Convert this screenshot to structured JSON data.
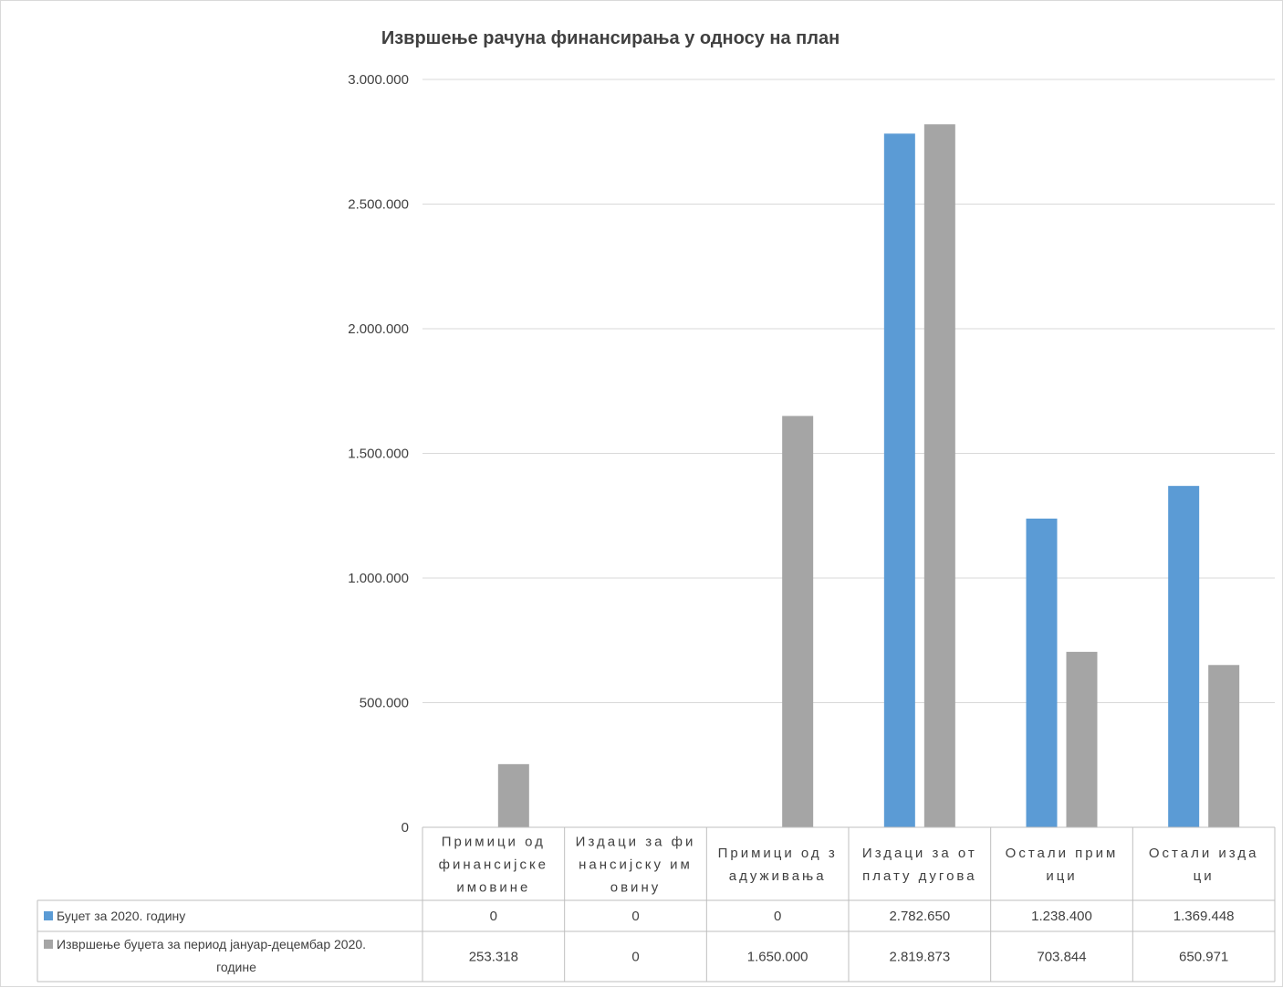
{
  "chart_data": {
    "type": "bar",
    "title": "Извршење рачуна финансирања у односу на план",
    "categories": [
      [
        "Примици од",
        "финансијске",
        "имовине"
      ],
      [
        "Издаци за фи",
        "нансијску им",
        "овину"
      ],
      [
        "Примици од з",
        "адуживања"
      ],
      [
        "Издаци за от",
        "плату дугова"
      ],
      [
        "Остали  прим",
        "ици"
      ],
      [
        "Остали  изда",
        "ци"
      ]
    ],
    "series": [
      {
        "name": "Буџет за 2020. годину",
        "values": [
          0,
          0,
          0,
          2782650,
          1238400,
          1369448
        ],
        "labels": [
          "0",
          "0",
          "0",
          "2.782.650",
          "1.238.400",
          "1.369.448"
        ],
        "color": "#5b9bd5"
      },
      {
        "name": "Извршење    буџета за период јануар-децембар 2020. године",
        "name_lines": [
          "Извршење    буџета за период јануар-децембар 2020.",
          "године"
        ],
        "values": [
          253318,
          0,
          1650000,
          2819873,
          703844,
          650971
        ],
        "labels": [
          "253.318",
          "0",
          "1.650.000",
          "2.819.873",
          "703.844",
          "650.971"
        ],
        "color": "#a5a5a5"
      }
    ],
    "ylim": [
      0,
      3000000
    ],
    "yticks": [
      0,
      500000,
      1000000,
      1500000,
      2000000,
      2500000,
      3000000
    ],
    "ytick_labels": [
      "0",
      "500.000",
      "1.000.000",
      "1.500.000",
      "2.000.000",
      "2.500.000",
      "3.000.000"
    ],
    "grid": true,
    "legend": "data-table",
    "colors": {
      "gridline": "#d9d9d9",
      "text": "#404040",
      "table_border": "#bfbfbf"
    }
  }
}
